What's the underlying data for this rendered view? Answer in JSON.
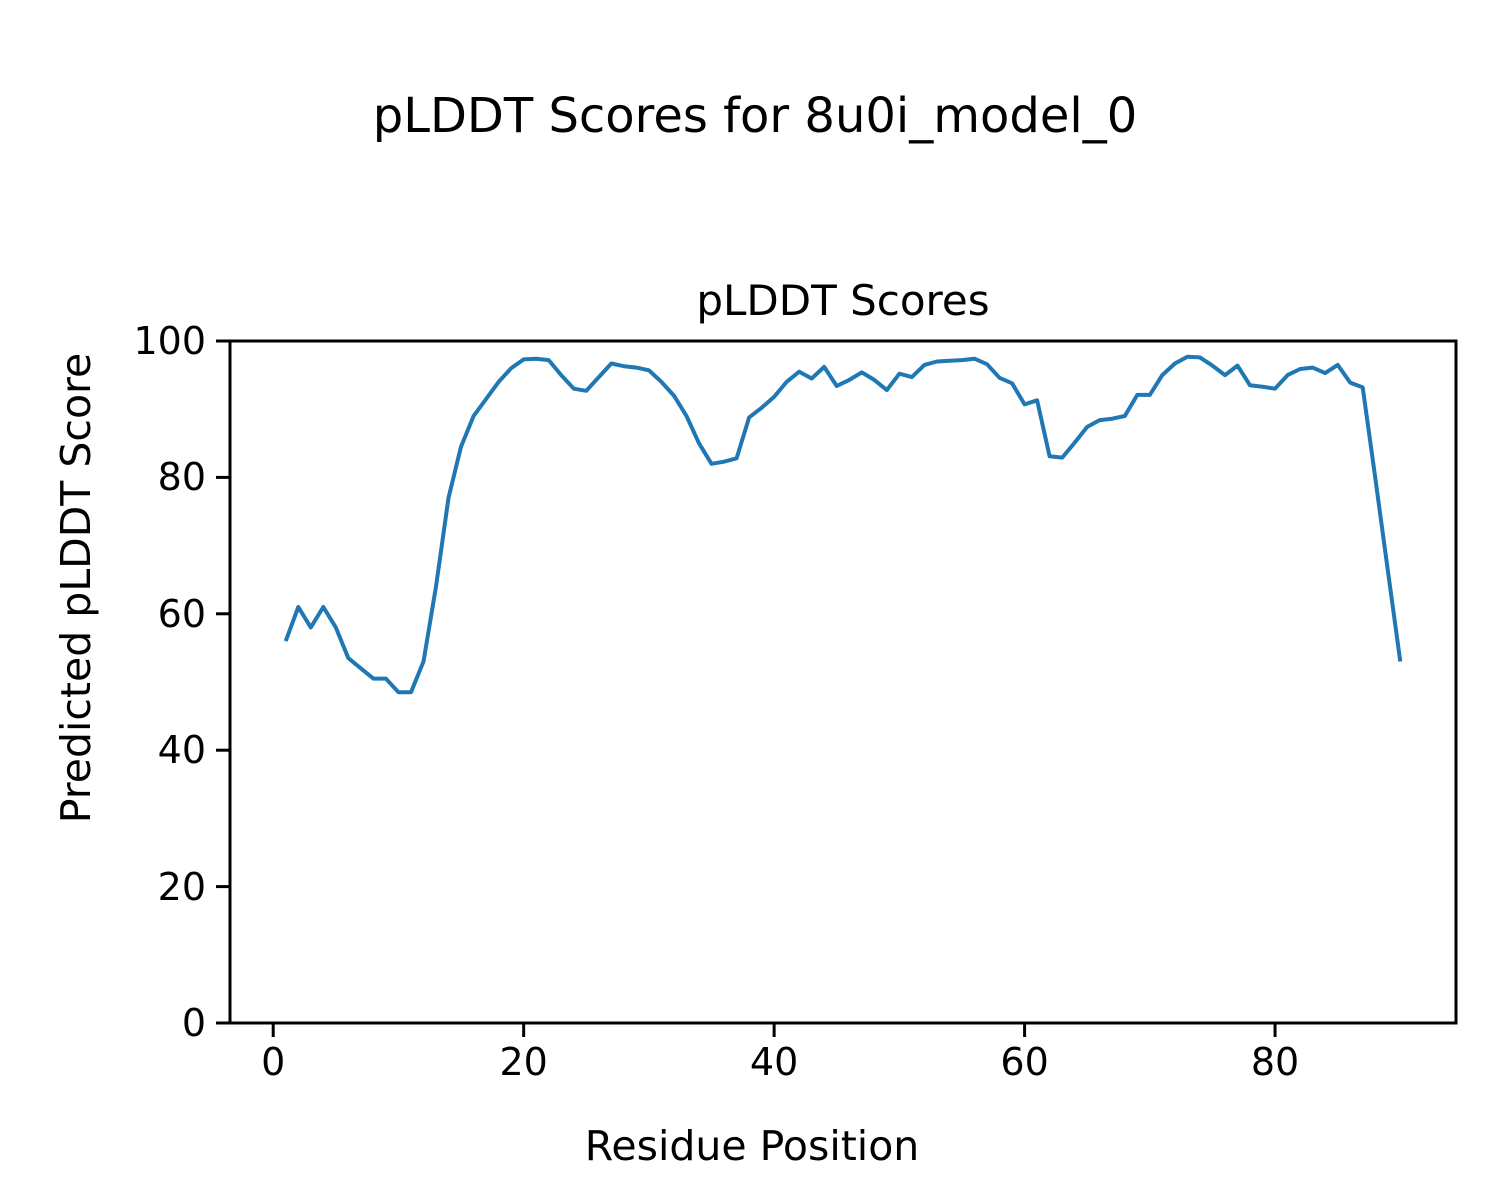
{
  "figure": {
    "suptitle": "pLDDT Scores for 8u0i_model_0"
  },
  "chart_data": {
    "type": "line",
    "title": "pLDDT Scores",
    "xlabel": "Residue Position",
    "ylabel": "Predicted pLDDT Score",
    "xlim": [
      -3.45,
      94.45
    ],
    "ylim": [
      0,
      100
    ],
    "x_ticks": [
      0,
      20,
      40,
      60,
      80
    ],
    "y_ticks": [
      0,
      20,
      40,
      60,
      80,
      100
    ],
    "grid": false,
    "legend_position": "none",
    "line_color": "#1f77b4",
    "line_width": 4,
    "axis_color": "#000000",
    "series": [
      {
        "name": "pLDDT",
        "x": [
          1,
          2,
          3,
          4,
          5,
          6,
          7,
          8,
          9,
          10,
          11,
          12,
          13,
          14,
          15,
          16,
          17,
          18,
          19,
          20,
          21,
          22,
          23,
          24,
          25,
          26,
          27,
          28,
          29,
          30,
          31,
          32,
          33,
          34,
          35,
          36,
          37,
          38,
          39,
          40,
          41,
          42,
          43,
          44,
          45,
          46,
          47,
          48,
          49,
          50,
          51,
          52,
          53,
          54,
          55,
          56,
          57,
          58,
          59,
          60,
          61,
          62,
          63,
          64,
          65,
          66,
          67,
          68,
          69,
          70,
          71,
          72,
          73,
          74,
          75,
          76,
          77,
          78,
          79,
          80,
          81,
          82,
          83,
          84,
          85,
          86,
          87,
          88,
          89,
          90
        ],
        "values": [
          56,
          61,
          58,
          61,
          58,
          53.5,
          52,
          50.5,
          50.5,
          48.5,
          48.5,
          53,
          64,
          77,
          84.5,
          89,
          91.5,
          94,
          96,
          97.3,
          97.4,
          97.2,
          95,
          93,
          92.7,
          94.7,
          96.7,
          96.3,
          96.1,
          95.7,
          94,
          92,
          89,
          85,
          82,
          82.3,
          82.8,
          88.8,
          90.2,
          91.8,
          94,
          95.5,
          94.5,
          96.2,
          93.4,
          94.3,
          95.4,
          94.3,
          92.8,
          95.2,
          94.7,
          96.5,
          97,
          97.1,
          97.2,
          97.4,
          96.6,
          94.6,
          93.8,
          90.7,
          91.3,
          83.1,
          82.9,
          85.1,
          87.4,
          88.4,
          88.6,
          89,
          92.1,
          92.1,
          95,
          96.7,
          97.7,
          97.6,
          96.4,
          95,
          96.4,
          93.5,
          93.3,
          93,
          95,
          95.9,
          96.1,
          95.3,
          96.5,
          93.9,
          93.2,
          80,
          66.5,
          53
        ]
      }
    ]
  }
}
